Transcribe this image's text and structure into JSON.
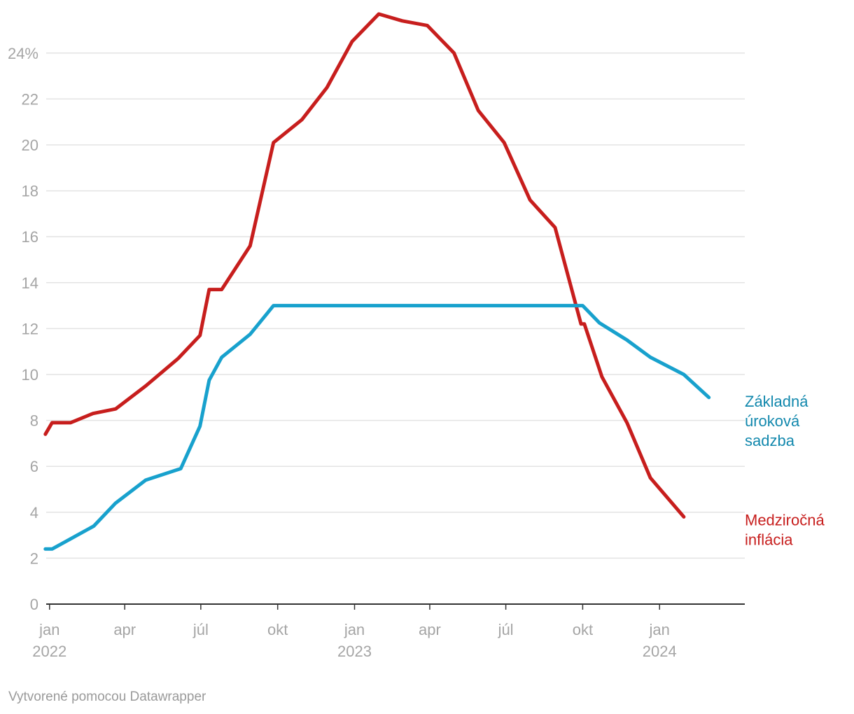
{
  "chart_data": {
    "type": "line",
    "title": "",
    "xlabel": "",
    "ylabel": "",
    "ylim": [
      0,
      25.7
    ],
    "y_ticks": [
      {
        "value": 0,
        "label": "0"
      },
      {
        "value": 2,
        "label": "2"
      },
      {
        "value": 4,
        "label": "4"
      },
      {
        "value": 6,
        "label": "6"
      },
      {
        "value": 8,
        "label": "8"
      },
      {
        "value": 10,
        "label": "10"
      },
      {
        "value": 12,
        "label": "12"
      },
      {
        "value": 14,
        "label": "14"
      },
      {
        "value": 16,
        "label": "16"
      },
      {
        "value": 18,
        "label": "18"
      },
      {
        "value": 20,
        "label": "20"
      },
      {
        "value": 22,
        "label": "22"
      },
      {
        "value": 24,
        "label": "24%"
      }
    ],
    "x_domain": [
      "2021-12-28",
      "2024-04-12"
    ],
    "x_ticks": [
      {
        "date": "2022-01-01",
        "label": "jan",
        "year": "2022"
      },
      {
        "date": "2022-04-01",
        "label": "apr",
        "year": ""
      },
      {
        "date": "2022-07-01",
        "label": "júl",
        "year": ""
      },
      {
        "date": "2022-10-01",
        "label": "okt",
        "year": ""
      },
      {
        "date": "2023-01-01",
        "label": "jan",
        "year": "2023"
      },
      {
        "date": "2023-04-01",
        "label": "apr",
        "year": ""
      },
      {
        "date": "2023-07-01",
        "label": "júl",
        "year": ""
      },
      {
        "date": "2023-10-01",
        "label": "okt",
        "year": ""
      },
      {
        "date": "2024-01-01",
        "label": "jan",
        "year": "2024"
      }
    ],
    "series": [
      {
        "name": "Medziročná inflácia",
        "label_lines": [
          "Medziročná",
          "inflácia"
        ],
        "color": "#c71e1d",
        "label_color": "#c71e1d",
        "points": [
          [
            "2021-12-27",
            7.4
          ],
          [
            "2022-01-04",
            7.9
          ],
          [
            "2022-01-26",
            7.9
          ],
          [
            "2022-02-22",
            8.3
          ],
          [
            "2022-03-21",
            8.5
          ],
          [
            "2022-04-26",
            9.5
          ],
          [
            "2022-06-04",
            10.7
          ],
          [
            "2022-06-30",
            11.7
          ],
          [
            "2022-07-11",
            13.7
          ],
          [
            "2022-07-26",
            13.7
          ],
          [
            "2022-08-29",
            15.6
          ],
          [
            "2022-09-26",
            20.1
          ],
          [
            "2022-10-30",
            21.1
          ],
          [
            "2022-11-29",
            22.5
          ],
          [
            "2022-12-29",
            24.5
          ],
          [
            "2023-01-30",
            25.7
          ],
          [
            "2023-02-27",
            25.4
          ],
          [
            "2023-03-29",
            25.2
          ],
          [
            "2023-04-30",
            24.0
          ],
          [
            "2023-05-29",
            21.5
          ],
          [
            "2023-06-29",
            20.1
          ],
          [
            "2023-07-30",
            17.6
          ],
          [
            "2023-08-29",
            16.4
          ],
          [
            "2023-09-29",
            12.2
          ],
          [
            "2023-10-03",
            12.2
          ],
          [
            "2023-10-24",
            9.9
          ],
          [
            "2023-11-23",
            7.9
          ],
          [
            "2023-12-21",
            5.5
          ],
          [
            "2024-01-30",
            3.8
          ]
        ]
      },
      {
        "name": "Základná úroková sadzba",
        "label_lines": [
          "Základná",
          "úroková",
          "sadzba"
        ],
        "color": "#18a1cd",
        "label_color": "#1288ad",
        "points": [
          [
            "2021-12-27",
            2.4
          ],
          [
            "2022-01-04",
            2.4
          ],
          [
            "2022-01-29",
            2.9
          ],
          [
            "2022-02-23",
            3.4
          ],
          [
            "2022-03-21",
            4.4
          ],
          [
            "2022-04-26",
            5.4
          ],
          [
            "2022-06-07",
            5.9
          ],
          [
            "2022-06-30",
            7.75
          ],
          [
            "2022-07-11",
            9.75
          ],
          [
            "2022-07-26",
            10.75
          ],
          [
            "2022-08-29",
            11.75
          ],
          [
            "2022-09-26",
            13.0
          ],
          [
            "2023-10-01",
            13.0
          ],
          [
            "2023-10-21",
            12.25
          ],
          [
            "2023-11-23",
            11.5
          ],
          [
            "2023-12-21",
            10.75
          ],
          [
            "2024-01-30",
            10.0
          ],
          [
            "2024-02-29",
            9.0
          ]
        ]
      }
    ]
  },
  "credit": "Vytvorené pomocou Datawrapper"
}
